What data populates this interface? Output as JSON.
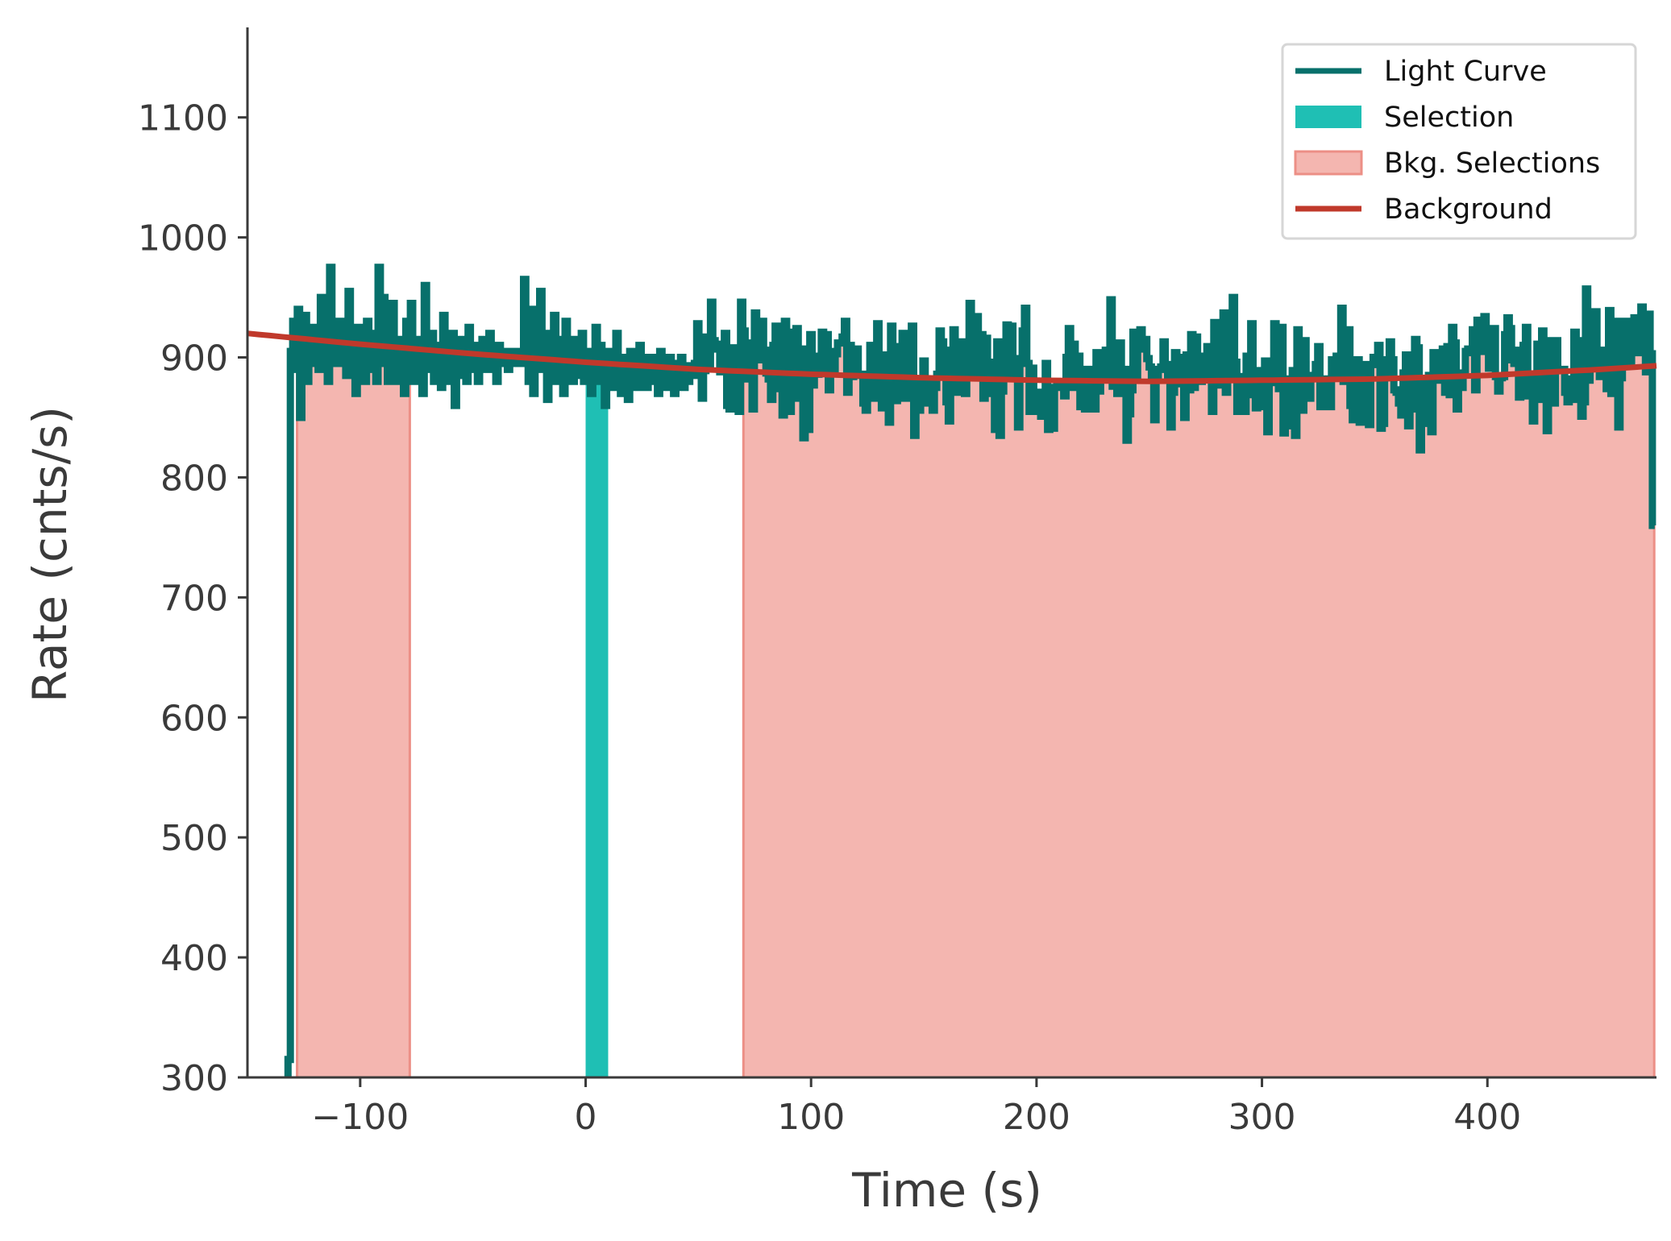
{
  "chart_data": {
    "type": "line",
    "title": "",
    "xlabel": "Time (s)",
    "ylabel": "Rate (cnts/s)",
    "xlim": [
      -150,
      475
    ],
    "ylim": [
      300,
      1175
    ],
    "grid": false,
    "x_ticks": [
      -100,
      0,
      100,
      200,
      300,
      400
    ],
    "x_tick_labels": [
      "−100",
      "0",
      "100",
      "200",
      "300",
      "400"
    ],
    "y_ticks": [
      300,
      400,
      500,
      600,
      700,
      800,
      900,
      1000,
      1100
    ],
    "y_tick_labels": [
      "300",
      "400",
      "500",
      "600",
      "700",
      "800",
      "900",
      "1000",
      "1100"
    ],
    "legend": {
      "placement": "top-right",
      "entries": [
        {
          "label": "Light Curve",
          "kind": "line",
          "color": "#07706b"
        },
        {
          "label": "Selection",
          "kind": "patch",
          "color": "#1fbfb4"
        },
        {
          "label": "Bkg. Selections",
          "kind": "patch",
          "color": "#f4b6b0"
        },
        {
          "label": "Background",
          "kind": "line",
          "color": "#c0392b"
        }
      ]
    },
    "colors": {
      "light_curve": "#07706b",
      "selection": "#1fbfb4",
      "bkg_fill": "#f4b6b0",
      "bkg_edge": "#ec8f86",
      "background": "#c0392b",
      "axis": "#3a3a3a"
    },
    "light_curve": {
      "start_time": -132,
      "bin_width": 1.024,
      "end_time": 475,
      "rates": [
        315,
        905,
        930,
        890,
        940,
        850,
        920,
        935,
        880,
        905,
        895,
        925,
        910,
        890,
        950,
        900,
        920,
        880,
        975,
        905,
        895,
        910,
        930,
        895,
        915,
        885,
        955,
        900,
        910,
        870,
        925,
        895,
        905,
        880,
        930,
        900,
        890,
        920,
        880,
        975,
        895,
        950,
        905,
        880,
        925,
        945,
        880,
        915,
        895,
        905,
        870,
        930,
        900,
        945,
        880,
        905,
        895,
        915,
        870,
        960,
        905,
        890,
        920,
        880,
        900,
        910,
        875,
        935,
        895,
        905,
        880,
        920,
        860,
        900,
        915,
        885,
        905,
        880,
        925,
        890,
        905,
        910,
        880,
        895,
        915,
        900,
        890,
        920,
        905,
        895,
        880,
        910,
        905,
        895,
        900,
        890,
        905,
        900,
        895,
        900,
        905,
        895,
        965,
        925,
        880,
        940,
        870,
        905,
        900,
        955,
        890,
        910,
        865,
        920,
        900,
        935,
        880,
        905,
        915,
        870,
        930,
        890,
        905,
        880,
        915,
        885,
        900,
        920,
        880,
        900,
        905,
        870,
        895,
        925,
        880,
        910,
        890,
        860,
        905,
        880,
        900,
        875,
        920,
        890,
        870,
        900,
        885,
        865,
        905,
        880,
        895,
        875,
        910,
        885,
        900,
        875,
        895,
        880,
        900,
        885,
        870,
        905,
        880,
        895,
        875,
        900,
        880,
        870,
        895,
        880,
        900,
        875,
        890,
        880
      ],
      "seed": 17,
      "noise_amp": 45
    },
    "selection": {
      "t_start": 0,
      "t_end": 10
    },
    "bkg_selections": [
      {
        "t_start": -128,
        "t_end": -78
      },
      {
        "t_start": 70,
        "t_end": 474
      }
    ],
    "background_fit": {
      "x": [
        -150,
        -100,
        -50,
        0,
        50,
        100,
        150,
        200,
        250,
        300,
        350,
        400,
        450,
        475
      ],
      "y": [
        920,
        911,
        903,
        896,
        890,
        886,
        883,
        881,
        880,
        881,
        882,
        885,
        890,
        893
      ]
    }
  }
}
